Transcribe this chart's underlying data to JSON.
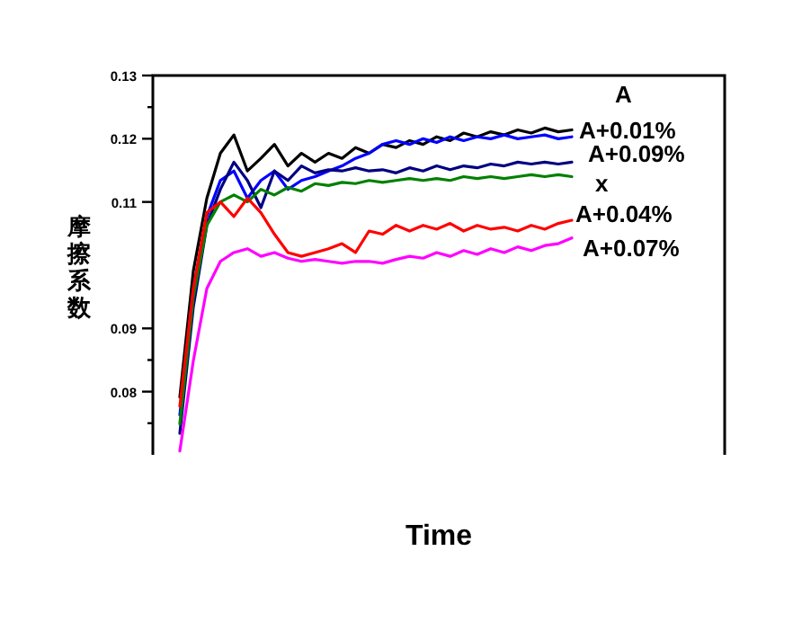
{
  "chart_data": {
    "type": "line",
    "xlabel": "Time",
    "ylabel": "摩擦系数",
    "categories": [
      null,
      null,
      null,
      null,
      null,
      null,
      null,
      null,
      null,
      null,
      null,
      null,
      null,
      null,
      null,
      null,
      null,
      null,
      null,
      null,
      null,
      null,
      null,
      null,
      null,
      null,
      null,
      null,
      null,
      null
    ],
    "series": [
      {
        "name": "A",
        "color": "#000000",
        "values": [
          0.0791,
          0.0991,
          0.1106,
          0.1177,
          0.1206,
          0.1149,
          0.1169,
          0.1191,
          0.1157,
          0.1177,
          0.1163,
          0.1177,
          0.1169,
          0.1186,
          0.1177,
          0.1191,
          0.1186,
          0.1197,
          0.1191,
          0.1203,
          0.1197,
          0.1209,
          0.1203,
          0.1211,
          0.1206,
          0.1214,
          0.1209,
          0.1217,
          0.1211,
          0.1214
        ]
      },
      {
        "name": "A+0.01%",
        "color": "#0000ff",
        "values": [
          0.0763,
          0.0963,
          0.1077,
          0.1134,
          0.1149,
          0.1106,
          0.1134,
          0.1149,
          0.112,
          0.1134,
          0.114,
          0.1149,
          0.1157,
          0.1169,
          0.1177,
          0.1191,
          0.1197,
          0.1191,
          0.12,
          0.1194,
          0.1203,
          0.1197,
          0.1203,
          0.12,
          0.1206,
          0.12,
          0.1203,
          0.1206,
          0.12,
          0.1203
        ]
      },
      {
        "name": "A+0.09%",
        "color": "#000080",
        "values": [
          0.0734,
          0.0934,
          0.1063,
          0.112,
          0.1163,
          0.1134,
          0.1091,
          0.1149,
          0.1134,
          0.1157,
          0.1146,
          0.1151,
          0.1149,
          0.1154,
          0.1149,
          0.1151,
          0.1146,
          0.1154,
          0.1149,
          0.1157,
          0.1151,
          0.1157,
          0.1154,
          0.116,
          0.1157,
          0.1163,
          0.116,
          0.1163,
          0.116,
          0.1163
        ]
      },
      {
        "name": "x",
        "color": "#008000",
        "values": [
          0.0749,
          0.0949,
          0.1063,
          0.11,
          0.1111,
          0.11,
          0.112,
          0.1111,
          0.1123,
          0.1117,
          0.1129,
          0.1126,
          0.1131,
          0.1129,
          0.1134,
          0.1131,
          0.1134,
          0.1137,
          0.1134,
          0.1137,
          0.1134,
          0.114,
          0.1137,
          0.114,
          0.1137,
          0.114,
          0.1143,
          0.114,
          0.1143,
          0.114
        ]
      },
      {
        "name": "A+0.04%",
        "color": "#ff0000",
        "values": [
          0.0777,
          0.0963,
          0.1083,
          0.11,
          0.1077,
          0.1106,
          0.1083,
          0.1049,
          0.102,
          0.1014,
          0.102,
          0.1026,
          0.1034,
          0.102,
          0.1054,
          0.1049,
          0.1063,
          0.1054,
          0.1063,
          0.1057,
          0.1066,
          0.1054,
          0.1063,
          0.1057,
          0.106,
          0.1054,
          0.1063,
          0.1057,
          0.1066,
          0.1071
        ]
      },
      {
        "name": "A+0.07%",
        "color": "#ff00ff",
        "values": [
          0.0706,
          0.0849,
          0.0963,
          0.1006,
          0.102,
          0.1026,
          0.1014,
          0.102,
          0.1011,
          0.1006,
          0.1009,
          0.1006,
          0.1003,
          0.1006,
          0.1006,
          0.1003,
          0.1009,
          0.1014,
          0.1011,
          0.102,
          0.1014,
          0.1023,
          0.1017,
          0.1026,
          0.102,
          0.1029,
          0.1023,
          0.1031,
          0.1034,
          0.1043
        ]
      }
    ],
    "ylim": [
      0.07,
      0.13
    ],
    "yticks": [
      0.13,
      0.12,
      0.11,
      0.09,
      0.08,
      {
        "value": 0.125,
        "label": null
      },
      {
        "value": 0.085,
        "label": null
      },
      {
        "value": 0.075,
        "label": null
      }
    ],
    "tick_labels": "y",
    "grid": false,
    "marker": "none",
    "line_style": "solid"
  }
}
